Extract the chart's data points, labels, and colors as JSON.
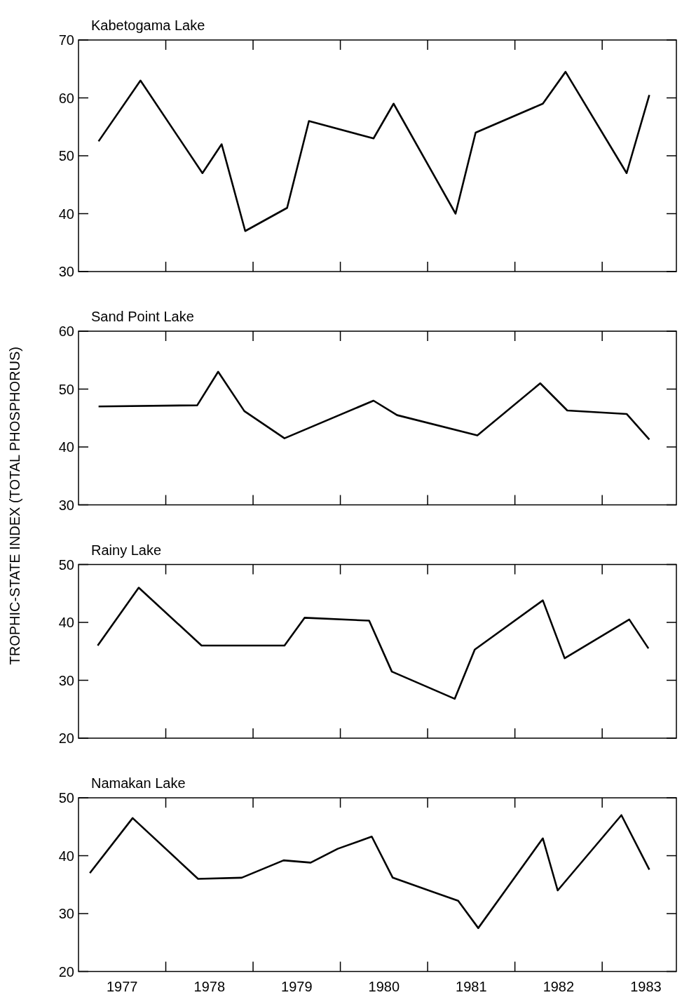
{
  "chart_data": [
    {
      "type": "line",
      "title": "Kabetogama Lake",
      "ylabel": "TROPHIC-STATE INDEX (TOTAL PHOSPHORUS)",
      "xlim": [
        1977,
        1983.85
      ],
      "xticks": [
        {
          "value": 1978,
          "label": null
        },
        {
          "value": 1979,
          "label": null
        },
        {
          "value": 1980,
          "label": null
        },
        {
          "value": 1981,
          "label": null
        },
        {
          "value": 1982,
          "label": null
        },
        {
          "value": 1983,
          "label": null
        }
      ],
      "ylim": [
        30,
        70
      ],
      "yticks": [
        30,
        40,
        50,
        60,
        70
      ],
      "tick_labels": "y",
      "series": [
        {
          "color": "#000000",
          "x": [
            1977.23,
            1977.71,
            1978.42,
            1978.64,
            1978.91,
            1979.39,
            1979.64,
            1980.38,
            1980.61,
            1981.32,
            1981.55,
            1982.32,
            1982.58,
            1983.28,
            1983.54
          ],
          "values": [
            52.5,
            63,
            47,
            52,
            37,
            41,
            56,
            53,
            59,
            40,
            54,
            59,
            64.5,
            47,
            60.5
          ]
        }
      ]
    },
    {
      "type": "line",
      "title": "Sand Point Lake",
      "xlim": [
        1977,
        1983.85
      ],
      "xticks": [
        {
          "value": 1978,
          "label": null
        },
        {
          "value": 1979,
          "label": null
        },
        {
          "value": 1980,
          "label": null
        },
        {
          "value": 1981,
          "label": null
        },
        {
          "value": 1982,
          "label": null
        },
        {
          "value": 1983,
          "label": null
        }
      ],
      "ylim": [
        30,
        60
      ],
      "yticks": [
        30,
        40,
        50,
        60
      ],
      "tick_labels": "y",
      "series": [
        {
          "color": "#000000",
          "x": [
            1977.23,
            1978.36,
            1978.6,
            1978.9,
            1979.36,
            1980.38,
            1980.65,
            1981.57,
            1982.29,
            1982.6,
            1983.28,
            1983.54
          ],
          "values": [
            47,
            47.2,
            53,
            46.2,
            41.5,
            48,
            45.5,
            42,
            51,
            46.3,
            45.7,
            41.3
          ]
        }
      ]
    },
    {
      "type": "line",
      "title": "Rainy Lake",
      "xlim": [
        1977,
        1983.85
      ],
      "xticks": [
        {
          "value": 1978,
          "label": null
        },
        {
          "value": 1979,
          "label": null
        },
        {
          "value": 1980,
          "label": null
        },
        {
          "value": 1981,
          "label": null
        },
        {
          "value": 1982,
          "label": null
        },
        {
          "value": 1983,
          "label": null
        }
      ],
      "ylim": [
        20,
        50
      ],
      "yticks": [
        20,
        30,
        40,
        50
      ],
      "tick_labels": "y",
      "series": [
        {
          "color": "#000000",
          "x": [
            1977.22,
            1977.69,
            1978.41,
            1979.36,
            1979.59,
            1980.33,
            1980.59,
            1981.31,
            1981.54,
            1982.32,
            1982.57,
            1983.31,
            1983.53
          ],
          "values": [
            36,
            46,
            36,
            36,
            40.8,
            40.3,
            31.5,
            26.8,
            35.3,
            43.8,
            33.8,
            40.5,
            35.5
          ]
        }
      ]
    },
    {
      "type": "line",
      "title": "Namakan Lake",
      "xlim": [
        1977,
        1983.85
      ],
      "xticks": [
        {
          "value": 1977.5,
          "label": "1977"
        },
        {
          "value": 1978,
          "label": null
        },
        {
          "value": 1978.5,
          "label": "1978"
        },
        {
          "value": 1979,
          "label": null
        },
        {
          "value": 1979.5,
          "label": "1979"
        },
        {
          "value": 1980,
          "label": null
        },
        {
          "value": 1980.5,
          "label": "1980"
        },
        {
          "value": 1981,
          "label": null
        },
        {
          "value": 1981.5,
          "label": "1981"
        },
        {
          "value": 1982,
          "label": null
        },
        {
          "value": 1982.5,
          "label": "1982"
        },
        {
          "value": 1983,
          "label": null
        },
        {
          "value": 1983.5,
          "label": "1983"
        }
      ],
      "ylim": [
        20,
        50
      ],
      "yticks": [
        20,
        30,
        40,
        50
      ],
      "series": [
        {
          "color": "#000000",
          "x": [
            1977.13,
            1977.62,
            1978.37,
            1978.87,
            1979.35,
            1979.66,
            1979.97,
            1980.36,
            1980.6,
            1981.35,
            1981.58,
            1982.32,
            1982.49,
            1983.22,
            1983.54
          ],
          "values": [
            37,
            46.5,
            36,
            36.2,
            39.2,
            38.8,
            41.2,
            43.3,
            36.2,
            32.2,
            27.5,
            43,
            34,
            47,
            37.6
          ]
        }
      ]
    }
  ]
}
